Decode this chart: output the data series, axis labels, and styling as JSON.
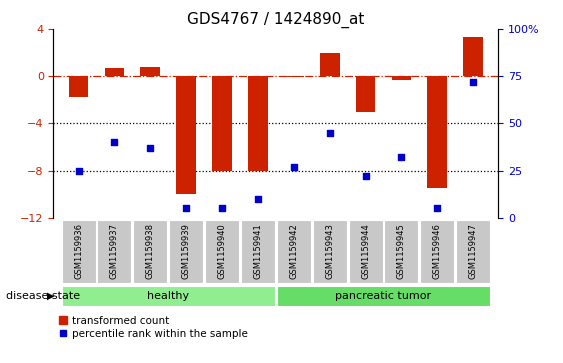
{
  "title": "GDS4767 / 1424890_at",
  "samples": [
    "GSM1159936",
    "GSM1159937",
    "GSM1159938",
    "GSM1159939",
    "GSM1159940",
    "GSM1159941",
    "GSM1159942",
    "GSM1159943",
    "GSM1159944",
    "GSM1159945",
    "GSM1159946",
    "GSM1159947"
  ],
  "bar_values": [
    -1.8,
    0.7,
    0.8,
    -10.0,
    -8.0,
    -8.0,
    -0.1,
    2.0,
    -3.0,
    -0.3,
    -9.5,
    3.3
  ],
  "percentile_values": [
    25,
    40,
    37,
    5,
    5,
    10,
    27,
    45,
    22,
    32,
    5,
    72
  ],
  "bar_color": "#cc2200",
  "dot_color": "#0000cc",
  "ylim_left": [
    -12,
    4
  ],
  "ylim_right": [
    0,
    100
  ],
  "yticks_left": [
    4,
    0,
    -4,
    -8,
    -12
  ],
  "yticks_right": [
    100,
    75,
    50,
    25,
    0
  ],
  "hlines_dotted": [
    -4,
    -8
  ],
  "hline_dashdot": 0,
  "groups": [
    {
      "label": "healthy",
      "start": 0,
      "end": 6,
      "color": "#90ee90"
    },
    {
      "label": "pancreatic tumor",
      "start": 6,
      "end": 12,
      "color": "#66dd66"
    }
  ],
  "disease_state_label": "disease state",
  "legend_bar_label": "transformed count",
  "legend_dot_label": "percentile rank within the sample",
  "bar_width": 0.55,
  "title_fontsize": 11,
  "label_fontsize": 6,
  "tick_fontsize": 8,
  "group_fontsize": 8,
  "legend_fontsize": 7.5,
  "cell_bg": "#c8c8c8",
  "cell_edge": "#ffffff",
  "plot_bg": "#ffffff"
}
